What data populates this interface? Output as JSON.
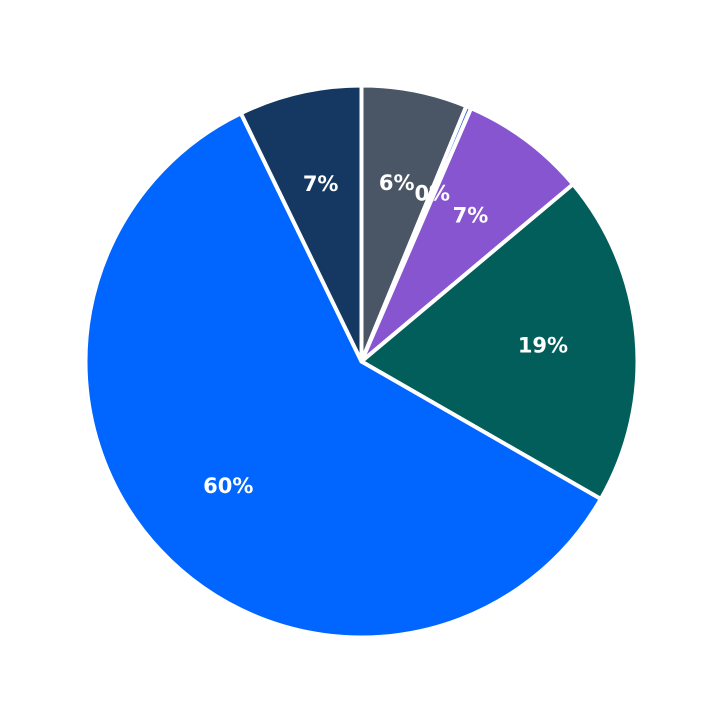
{
  "chart_data": {
    "type": "pie",
    "title": "",
    "start_angle_deg": 90,
    "direction": "clockwise",
    "slices": [
      {
        "label": "6%",
        "value": 6.2,
        "color": "#4a5565"
      },
      {
        "label": "0%",
        "value": 0.3,
        "color": "#3d6fd6"
      },
      {
        "label": "7%",
        "value": 7.4,
        "color": "#8755cf"
      },
      {
        "label": "19%",
        "value": 19.4,
        "color": "#025e5b"
      },
      {
        "label": "60%",
        "value": 59.5,
        "color": "#0066ff"
      },
      {
        "label": "7%",
        "value": 7.2,
        "color": "#143862"
      }
    ]
  }
}
